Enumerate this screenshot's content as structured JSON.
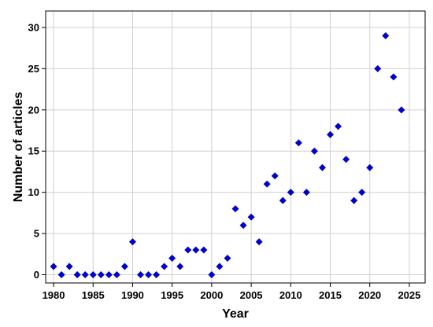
{
  "chart_data": {
    "type": "scatter",
    "xlabel": "Year",
    "ylabel": "Number of articles",
    "xlim": [
      1979,
      2027
    ],
    "ylim": [
      -1,
      32
    ],
    "xticks": [
      1980,
      1985,
      1990,
      1995,
      2000,
      2005,
      2010,
      2015,
      2020,
      2025
    ],
    "yticks": [
      0,
      5,
      10,
      15,
      20,
      25,
      30
    ],
    "grid": true,
    "marker": "diamond",
    "marker_color": "#0000CC",
    "series": [
      {
        "points": [
          [
            1980,
            1
          ],
          [
            1981,
            0
          ],
          [
            1982,
            1
          ],
          [
            1983,
            0
          ],
          [
            1984,
            0
          ],
          [
            1985,
            0
          ],
          [
            1986,
            0
          ],
          [
            1987,
            0
          ],
          [
            1988,
            0
          ],
          [
            1989,
            1
          ],
          [
            1990,
            4
          ],
          [
            1991,
            0
          ],
          [
            1992,
            0
          ],
          [
            1993,
            0
          ],
          [
            1994,
            1
          ],
          [
            1995,
            2
          ],
          [
            1996,
            1
          ],
          [
            1997,
            3
          ],
          [
            1998,
            3
          ],
          [
            1999,
            3
          ],
          [
            2000,
            0
          ],
          [
            2001,
            1
          ],
          [
            2002,
            2
          ],
          [
            2003,
            8
          ],
          [
            2004,
            6
          ],
          [
            2005,
            7
          ],
          [
            2006,
            4
          ],
          [
            2007,
            11
          ],
          [
            2008,
            12
          ],
          [
            2009,
            9
          ],
          [
            2010,
            10
          ],
          [
            2011,
            16
          ],
          [
            2012,
            10
          ],
          [
            2013,
            15
          ],
          [
            2014,
            13
          ],
          [
            2015,
            17
          ],
          [
            2016,
            18
          ],
          [
            2017,
            14
          ],
          [
            2018,
            9
          ],
          [
            2019,
            10
          ],
          [
            2020,
            13
          ],
          [
            2021,
            25
          ],
          [
            2022,
            29
          ],
          [
            2023,
            24
          ],
          [
            2024,
            20
          ]
        ]
      }
    ]
  }
}
